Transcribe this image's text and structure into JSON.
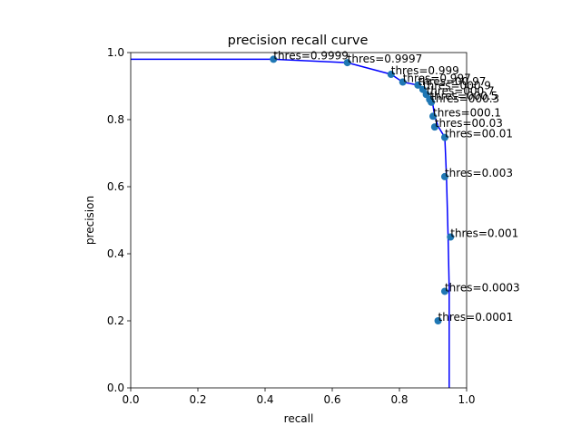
{
  "chart_data": {
    "type": "line",
    "title": "precision recall curve",
    "xlabel": "recall",
    "ylabel": "precision",
    "xlim": [
      0.0,
      1.0
    ],
    "ylim": [
      0.0,
      1.0
    ],
    "xticks": [
      "0.0",
      "0.2",
      "0.4",
      "0.6",
      "0.8",
      "1.0"
    ],
    "yticks": [
      "0.0",
      "0.2",
      "0.4",
      "0.6",
      "0.8",
      "1.0"
    ],
    "grid": false,
    "curve_color": "#0000ff",
    "point_color": "#1f77b4",
    "curve": {
      "x": [
        0.0,
        0.425,
        0.645,
        0.775,
        0.81,
        0.855,
        0.87,
        0.88,
        0.89,
        0.895,
        0.9,
        0.905,
        0.915,
        0.935,
        0.94,
        0.945,
        0.948,
        0.948
      ],
      "y": [
        0.98,
        0.98,
        0.97,
        0.935,
        0.912,
        0.903,
        0.89,
        0.875,
        0.86,
        0.852,
        0.842,
        0.81,
        0.78,
        0.747,
        0.63,
        0.45,
        0.3,
        0.0
      ]
    },
    "points": [
      {
        "x": 0.425,
        "y": 0.98,
        "label": "thres=0.9999"
      },
      {
        "x": 0.645,
        "y": 0.97,
        "label": "thres=0.9997"
      },
      {
        "x": 0.775,
        "y": 0.935,
        "label": "thres=0.999"
      },
      {
        "x": 0.81,
        "y": 0.912,
        "label": "thres=0.997"
      },
      {
        "x": 0.855,
        "y": 0.903,
        "label": "thres=00.97"
      },
      {
        "x": 0.87,
        "y": 0.89,
        "label": "thres=000.9"
      },
      {
        "x": 0.88,
        "y": 0.875,
        "label": "thres=000.7"
      },
      {
        "x": 0.89,
        "y": 0.86,
        "label": "thres=000.5"
      },
      {
        "x": 0.895,
        "y": 0.852,
        "label": "thres=000.3"
      },
      {
        "x": 0.9,
        "y": 0.81,
        "label": "thres=000.1"
      },
      {
        "x": 0.905,
        "y": 0.778,
        "label": "thres=00.03"
      },
      {
        "x": 0.935,
        "y": 0.747,
        "label": "thres=00.01"
      },
      {
        "x": 0.935,
        "y": 0.63,
        "label": "thres=0.003"
      },
      {
        "x": 0.952,
        "y": 0.45,
        "label": "thres=0.001"
      },
      {
        "x": 0.935,
        "y": 0.288,
        "label": "thres=0.0003"
      },
      {
        "x": 0.915,
        "y": 0.2,
        "label": "thres=0.0001"
      }
    ]
  }
}
